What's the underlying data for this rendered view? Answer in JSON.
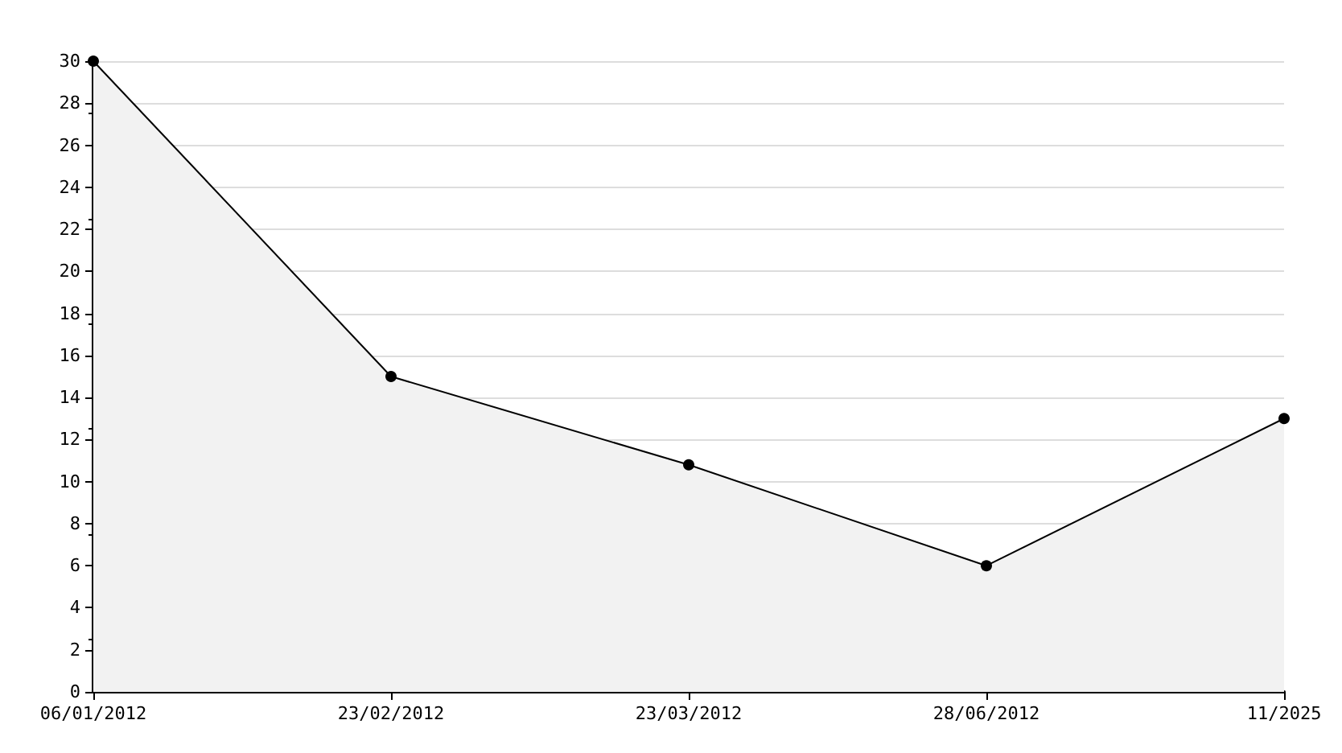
{
  "chart_data": {
    "type": "area",
    "categories": [
      "06/01/2012",
      "23/02/2012",
      "23/03/2012",
      "28/06/2012",
      "11/2025"
    ],
    "series": [
      {
        "color": "#000000",
        "values": [
          30,
          15,
          10.8,
          6,
          13
        ]
      }
    ],
    "ylim": [
      0,
      30
    ],
    "yticks": [
      0,
      2,
      4,
      6,
      8,
      10,
      12,
      14,
      16,
      18,
      20,
      22,
      24,
      26,
      28,
      30
    ],
    "grid": "y",
    "marker": "circle",
    "line_style": "solid"
  }
}
